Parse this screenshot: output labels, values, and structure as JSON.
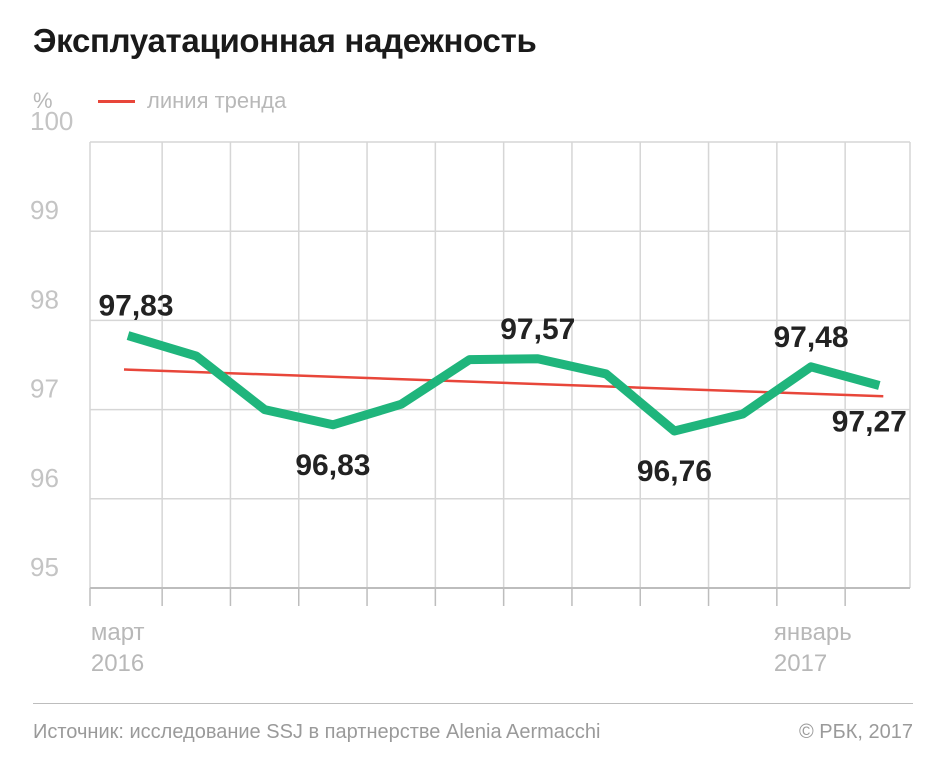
{
  "title": "Эксплуатационная надежность",
  "unit": "%",
  "legend": {
    "trend_label": "линия тренда"
  },
  "colors": {
    "series": "#1fb57c",
    "trend": "#e8463a",
    "grid": "#d6d6d6",
    "axis": "#bdbdbd"
  },
  "footer": {
    "source": "Источник: исследование SSJ в партнерстве Alenia Aermacchi",
    "copyright": "© РБК, 2017"
  },
  "chart_data": {
    "type": "line",
    "title": "Эксплуатационная надежность",
    "ylabel": "%",
    "ylim": [
      95,
      100
    ],
    "yticks": [
      95,
      96,
      97,
      98,
      99,
      100
    ],
    "grid": true,
    "legend_position": "top-left",
    "x": [
      "2016-03",
      "2016-04",
      "2016-05",
      "2016-06",
      "2016-07",
      "2016-08",
      "2016-09",
      "2016-10",
      "2016-11",
      "2016-12",
      "2017-01",
      "2017-02"
    ],
    "x_tick_labels": [
      {
        "x": "2016-03",
        "line1": "март",
        "line2": "2016"
      },
      {
        "x": "2017-01",
        "line1": "январь",
        "line2": "2017"
      }
    ],
    "series": [
      {
        "values": [
          97.83,
          97.6,
          97.0,
          96.83,
          97.06,
          97.56,
          97.57,
          97.4,
          96.76,
          96.95,
          97.48,
          97.27
        ]
      }
    ],
    "trend": {
      "name": "линия тренда",
      "start": 97.45,
      "end": 97.15
    },
    "data_labels": [
      {
        "index": 0,
        "text": "97,83"
      },
      {
        "index": 3,
        "text": "96,83"
      },
      {
        "index": 6,
        "text": "97,57"
      },
      {
        "index": 8,
        "text": "96,76"
      },
      {
        "index": 10,
        "text": "97,48"
      },
      {
        "index": 11,
        "text": "97,27"
      }
    ]
  }
}
